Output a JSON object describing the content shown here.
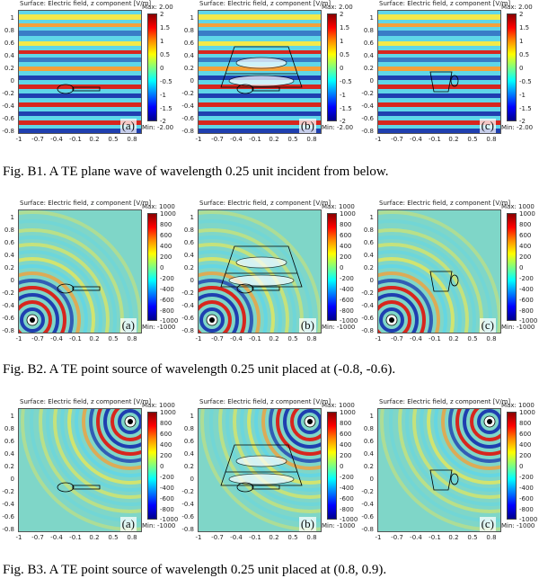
{
  "panel_title": "Surface: Electric field, z component [V/m]",
  "x_ticks": [
    "-1",
    "-0.7",
    "-0.4",
    "-0.1",
    "0.2",
    "0.5",
    "0.8"
  ],
  "y_ticks": [
    "1",
    "0.8",
    "0.6",
    "0.4",
    "0.2",
    "0",
    "-0.2",
    "-0.4",
    "-0.6",
    "-0.8"
  ],
  "panel_labels": [
    "(a)",
    "(b)",
    "(c)"
  ],
  "figures": [
    {
      "caption": "Fig. B1. A TE plane wave of wavelength 0.25 unit incident from below.",
      "source": "plane",
      "colorbar": {
        "max_label": "Max: 2.00",
        "min_label": "Min: -2.00",
        "ticks": [
          "2",
          "1.5",
          "1",
          "0.5",
          "0",
          "-0.5",
          "-1",
          "-1.5",
          "-2"
        ]
      }
    },
    {
      "caption": "Fig. B2. A TE point source of wavelength 0.25 unit placed at (-0.8, -0.6).",
      "source": "point-bottom-left",
      "colorbar": {
        "max_label": "Max: 1000",
        "min_label": "Min: -1000",
        "ticks": [
          "1000",
          "800",
          "600",
          "400",
          "200",
          "0",
          "-200",
          "-400",
          "-600",
          "-800",
          "-1000"
        ]
      }
    },
    {
      "caption": "Fig. B3. A TE point source of wavelength 0.25 unit placed at (0.8, 0.9).",
      "source": "point-top-right",
      "colorbar": {
        "max_label": "Max: 1000",
        "min_label": "Min: -1000",
        "ticks": [
          "1000",
          "800",
          "600",
          "400",
          "200",
          "0",
          "-200",
          "-400",
          "-600",
          "-800",
          "-1000"
        ]
      }
    }
  ],
  "colors": {
    "wave_red": "#d7261e",
    "wave_orange": "#f4a03a",
    "wave_yellow": "#f3e94a",
    "wave_cyan": "#5fd6e8",
    "wave_blue": "#1f3fb0",
    "background_field": "#7fd6c8"
  }
}
